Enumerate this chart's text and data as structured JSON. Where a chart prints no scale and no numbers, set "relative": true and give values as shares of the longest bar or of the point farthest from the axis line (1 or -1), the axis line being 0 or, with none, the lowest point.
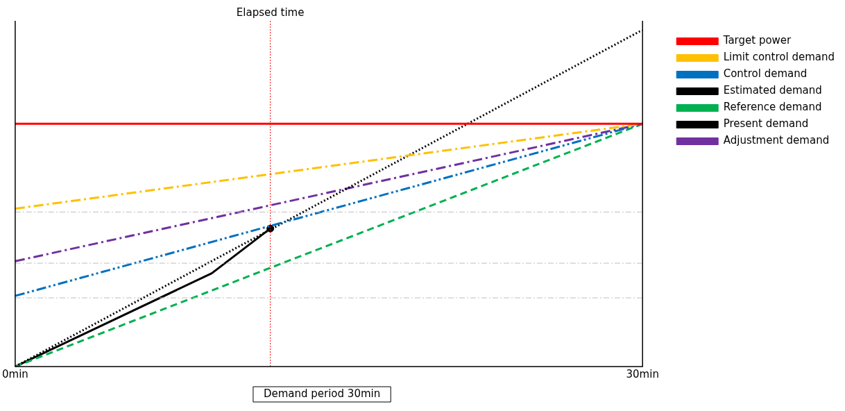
{
  "chart_data": {
    "type": "line",
    "relative": true,
    "legend": "right",
    "xlim": [
      0,
      30
    ],
    "xticks": [
      {
        "value": 0,
        "label": "0min"
      },
      {
        "value": 30,
        "label": "30min"
      }
    ],
    "series": [
      {
        "name": "Target power",
        "color": "#ff0000",
        "line_style": "solid",
        "x": [
          0,
          30
        ],
        "values": [
          0.721,
          0.721
        ]
      },
      {
        "name": "Limit control demand",
        "color": "#ffc000",
        "line_style": "dashdot",
        "x": [
          0,
          30
        ],
        "values": [
          0.469,
          0.721
        ]
      },
      {
        "name": "Control demand",
        "color": "#0070c0",
        "line_style": "dashdotdot",
        "x": [
          0,
          30
        ],
        "values": [
          0.21,
          0.721
        ]
      },
      {
        "name": "Estimated demand",
        "color": "#000000",
        "line_style": "dotted",
        "x": [
          0,
          30
        ],
        "values": [
          0,
          1
        ]
      },
      {
        "name": "Reference demand",
        "color": "#00b050",
        "line_style": "dashed",
        "x": [
          0,
          30
        ],
        "values": [
          0,
          0.721
        ]
      },
      {
        "name": "Present demand",
        "color": "#000000",
        "line_style": "solid",
        "x": [
          0,
          9.4,
          12.2
        ],
        "values": [
          0,
          0.277,
          0.41
        ]
      },
      {
        "name": "Adjustment demand",
        "color": "#7030a0",
        "line_style": "dashdot",
        "x": [
          0,
          30
        ],
        "values": [
          0.313,
          0.721
        ]
      },
      {
        "type": "scatter",
        "color": "#000000",
        "marker": "circle",
        "x": [
          12.2
        ],
        "values": [
          0.41
        ]
      }
    ],
    "ref_lines": [
      {
        "axis": "x",
        "value": 12.2,
        "label": "Elapsed time",
        "color": "#ff0000",
        "line_style": "dotted"
      },
      {
        "axis": "y",
        "value": 0.459,
        "label": null,
        "color": "#bfbfbf",
        "line_style": "dashdot"
      },
      {
        "axis": "y",
        "value": 0.307,
        "label": null,
        "color": "#bfbfbf",
        "line_style": "dashdot"
      },
      {
        "axis": "y",
        "value": 0.204,
        "label": null,
        "color": "#bfbfbf",
        "line_style": "dashdot"
      }
    ],
    "annotations": [
      "Demand period 30min"
    ]
  }
}
